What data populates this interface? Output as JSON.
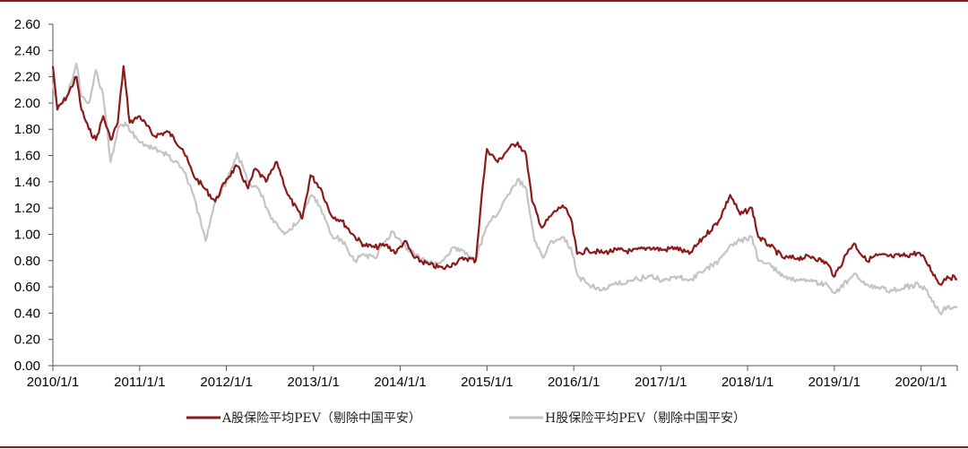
{
  "chart_data": {
    "type": "line",
    "title": "",
    "xlabel": "",
    "ylabel": "",
    "ylim": [
      0,
      2.6
    ],
    "yticks": [
      "0.00",
      "0.20",
      "0.40",
      "0.60",
      "0.80",
      "1.00",
      "1.20",
      "1.40",
      "1.60",
      "1.80",
      "2.00",
      "2.20",
      "2.40",
      "2.60"
    ],
    "xticks": [
      "2010/1/1",
      "2011/1/1",
      "2012/1/1",
      "2013/1/1",
      "2014/1/1",
      "2015/1/1",
      "2016/1/1",
      "2017/1/1",
      "2018/1/1",
      "2019/1/1",
      "2020/1/1"
    ],
    "grid": false,
    "legend_position": "bottom",
    "x_start": "2010/1/1",
    "x_end": "2020/6/1",
    "series": [
      {
        "name": "A股保险平均PEV（剔除中国平安）",
        "color": "#8b1a1a",
        "points": [
          [
            "2010/1/1",
            2.28
          ],
          [
            "2010/1/20",
            1.95
          ],
          [
            "2010/3/1",
            2.05
          ],
          [
            "2010/4/10",
            2.2
          ],
          [
            "2010/5/1",
            1.95
          ],
          [
            "2010/6/1",
            1.8
          ],
          [
            "2010/7/1",
            1.72
          ],
          [
            "2010/8/1",
            1.9
          ],
          [
            "2010/9/1",
            1.72
          ],
          [
            "2010/10/1",
            1.85
          ],
          [
            "2010/10/25",
            2.28
          ],
          [
            "2010/11/20",
            1.85
          ],
          [
            "2011/1/1",
            1.9
          ],
          [
            "2011/3/1",
            1.75
          ],
          [
            "2011/5/1",
            1.78
          ],
          [
            "2011/7/1",
            1.65
          ],
          [
            "2011/8/15",
            1.45
          ],
          [
            "2011/10/1",
            1.35
          ],
          [
            "2011/11/15",
            1.25
          ],
          [
            "2012/1/1",
            1.42
          ],
          [
            "2012/2/15",
            1.52
          ],
          [
            "2012/4/1",
            1.35
          ],
          [
            "2012/5/1",
            1.5
          ],
          [
            "2012/6/15",
            1.4
          ],
          [
            "2012/8/1",
            1.55
          ],
          [
            "2012/9/15",
            1.3
          ],
          [
            "2012/11/15",
            1.12
          ],
          [
            "2012/12/20",
            1.45
          ],
          [
            "2013/2/1",
            1.35
          ],
          [
            "2013/3/15",
            1.15
          ],
          [
            "2013/5/1",
            1.1
          ],
          [
            "2013/6/25",
            0.98
          ],
          [
            "2013/8/1",
            0.92
          ],
          [
            "2013/9/15",
            0.9
          ],
          [
            "2013/11/1",
            0.92
          ],
          [
            "2013/12/15",
            0.86
          ],
          [
            "2014/1/20",
            0.95
          ],
          [
            "2014/3/1",
            0.82
          ],
          [
            "2014/5/1",
            0.77
          ],
          [
            "2014/7/1",
            0.74
          ],
          [
            "2014/8/15",
            0.78
          ],
          [
            "2014/10/1",
            0.82
          ],
          [
            "2014/11/15",
            0.8
          ],
          [
            "2014/12/10",
            1.3
          ],
          [
            "2015/1/1",
            1.65
          ],
          [
            "2015/2/15",
            1.55
          ],
          [
            "2015/4/1",
            1.65
          ],
          [
            "2015/5/10",
            1.7
          ],
          [
            "2015/6/15",
            1.6
          ],
          [
            "2015/7/10",
            1.25
          ],
          [
            "2015/8/20",
            1.05
          ],
          [
            "2015/10/1",
            1.15
          ],
          [
            "2015/11/15",
            1.22
          ],
          [
            "2015/12/20",
            1.12
          ],
          [
            "2016/1/15",
            0.85
          ],
          [
            "2016/3/1",
            0.88
          ],
          [
            "2016/5/1",
            0.86
          ],
          [
            "2016/7/1",
            0.88
          ],
          [
            "2016/9/1",
            0.87
          ],
          [
            "2016/11/15",
            0.9
          ],
          [
            "2017/1/15",
            0.88
          ],
          [
            "2017/3/1",
            0.9
          ],
          [
            "2017/5/1",
            0.85
          ],
          [
            "2017/7/1",
            0.98
          ],
          [
            "2017/9/1",
            1.1
          ],
          [
            "2017/10/20",
            1.3
          ],
          [
            "2017/12/1",
            1.15
          ],
          [
            "2018/1/20",
            1.2
          ],
          [
            "2018/2/15",
            0.98
          ],
          [
            "2018/4/1",
            0.92
          ],
          [
            "2018/6/1",
            0.82
          ],
          [
            "2018/8/1",
            0.82
          ],
          [
            "2018/10/1",
            0.83
          ],
          [
            "2018/12/1",
            0.78
          ],
          [
            "2019/1/3",
            0.68
          ],
          [
            "2019/3/1",
            0.88
          ],
          [
            "2019/3/25",
            0.93
          ],
          [
            "2019/5/15",
            0.8
          ],
          [
            "2019/7/1",
            0.84
          ],
          [
            "2019/9/1",
            0.83
          ],
          [
            "2019/11/1",
            0.84
          ],
          [
            "2019/12/20",
            0.86
          ],
          [
            "2020/1/20",
            0.8
          ],
          [
            "2020/3/20",
            0.62
          ],
          [
            "2020/4/20",
            0.68
          ],
          [
            "2020/6/1",
            0.66
          ]
        ]
      },
      {
        "name": "H股保险平均PEV（剔除中国平安）",
        "color": "#c4c4c4",
        "points": [
          [
            "2010/1/1",
            2.15
          ],
          [
            "2010/1/20",
            1.95
          ],
          [
            "2010/3/1",
            2.05
          ],
          [
            "2010/4/10",
            2.3
          ],
          [
            "2010/5/1",
            2.05
          ],
          [
            "2010/6/1",
            2.0
          ],
          [
            "2010/7/1",
            2.25
          ],
          [
            "2010/8/1",
            2.05
          ],
          [
            "2010/9/1",
            1.55
          ],
          [
            "2010/10/1",
            1.8
          ],
          [
            "2010/11/1",
            1.85
          ],
          [
            "2011/1/1",
            1.7
          ],
          [
            "2011/3/1",
            1.65
          ],
          [
            "2011/5/1",
            1.6
          ],
          [
            "2011/7/1",
            1.5
          ],
          [
            "2011/8/15",
            1.3
          ],
          [
            "2011/10/5",
            0.95
          ],
          [
            "2011/11/15",
            1.25
          ],
          [
            "2012/1/1",
            1.4
          ],
          [
            "2012/2/15",
            1.62
          ],
          [
            "2012/4/1",
            1.4
          ],
          [
            "2012/5/15",
            1.35
          ],
          [
            "2012/7/1",
            1.15
          ],
          [
            "2012/9/1",
            1.0
          ],
          [
            "2012/11/1",
            1.1
          ],
          [
            "2012/12/25",
            1.3
          ],
          [
            "2013/2/1",
            1.2
          ],
          [
            "2013/3/15",
            1.0
          ],
          [
            "2013/5/1",
            0.95
          ],
          [
            "2013/6/25",
            0.8
          ],
          [
            "2013/8/1",
            0.85
          ],
          [
            "2013/9/15",
            0.82
          ],
          [
            "2013/11/1",
            0.95
          ],
          [
            "2013/12/1",
            1.02
          ],
          [
            "2014/1/15",
            0.92
          ],
          [
            "2014/3/1",
            0.85
          ],
          [
            "2014/5/1",
            0.78
          ],
          [
            "2014/7/1",
            0.8
          ],
          [
            "2014/8/15",
            0.9
          ],
          [
            "2014/10/1",
            0.85
          ],
          [
            "2014/11/15",
            0.82
          ],
          [
            "2014/12/20",
            1.0
          ],
          [
            "2015/1/15",
            1.1
          ],
          [
            "2015/3/1",
            1.2
          ],
          [
            "2015/4/15",
            1.35
          ],
          [
            "2015/5/10",
            1.42
          ],
          [
            "2015/6/15",
            1.35
          ],
          [
            "2015/7/20",
            0.95
          ],
          [
            "2015/8/25",
            0.82
          ],
          [
            "2015/10/1",
            0.95
          ],
          [
            "2015/11/15",
            0.98
          ],
          [
            "2015/12/20",
            0.9
          ],
          [
            "2016/1/20",
            0.68
          ],
          [
            "2016/3/1",
            0.62
          ],
          [
            "2016/5/1",
            0.58
          ],
          [
            "2016/7/1",
            0.62
          ],
          [
            "2016/9/1",
            0.65
          ],
          [
            "2016/11/15",
            0.68
          ],
          [
            "2017/1/15",
            0.65
          ],
          [
            "2017/3/1",
            0.68
          ],
          [
            "2017/5/1",
            0.65
          ],
          [
            "2017/7/1",
            0.72
          ],
          [
            "2017/9/1",
            0.8
          ],
          [
            "2017/10/20",
            0.92
          ],
          [
            "2017/12/1",
            0.95
          ],
          [
            "2018/1/20",
            0.98
          ],
          [
            "2018/2/15",
            0.8
          ],
          [
            "2018/4/1",
            0.78
          ],
          [
            "2018/6/1",
            0.68
          ],
          [
            "2018/8/1",
            0.65
          ],
          [
            "2018/10/1",
            0.64
          ],
          [
            "2018/12/1",
            0.62
          ],
          [
            "2019/1/3",
            0.55
          ],
          [
            "2019/3/1",
            0.65
          ],
          [
            "2019/4/1",
            0.7
          ],
          [
            "2019/5/15",
            0.62
          ],
          [
            "2019/7/1",
            0.6
          ],
          [
            "2019/9/1",
            0.57
          ],
          [
            "2019/11/1",
            0.6
          ],
          [
            "2019/12/20",
            0.62
          ],
          [
            "2020/1/20",
            0.58
          ],
          [
            "2020/3/20",
            0.4
          ],
          [
            "2020/4/20",
            0.45
          ],
          [
            "2020/6/1",
            0.44
          ]
        ]
      }
    ]
  }
}
